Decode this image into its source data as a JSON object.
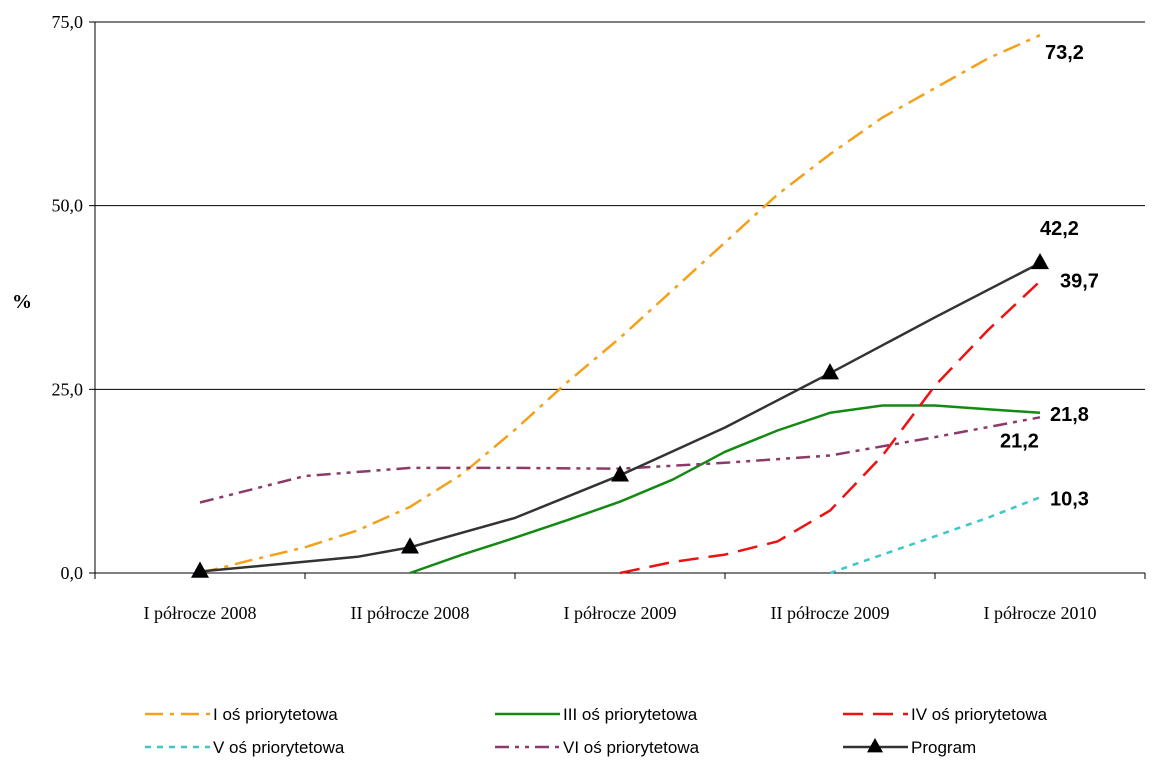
{
  "chart_data": {
    "type": "line",
    "ylabel": "%",
    "xlabel": "",
    "ylim": [
      0,
      75
    ],
    "yticks": [
      "0,0",
      "25,0",
      "50,0",
      "75,0"
    ],
    "ytick_values": [
      0,
      25,
      50,
      75
    ],
    "categories": [
      "I półrocze 2008",
      "II półrocze 2008",
      "I półrocze 2009",
      "II półrocze 2009",
      "I półrocze 2010"
    ],
    "grid": "horizontal",
    "legend_position": "bottom",
    "series": [
      {
        "name": "I oś priorytetowa",
        "color": "#F5A01A",
        "dash": "dash-dot",
        "x": [
          0,
          0.25,
          0.5,
          0.75,
          1,
          1.25,
          1.5,
          1.75,
          2,
          2.25,
          2.5,
          2.75,
          3,
          3.25,
          3.5,
          3.75,
          4
        ],
        "y": [
          0,
          1.8,
          3.5,
          5.8,
          9,
          13.5,
          19.5,
          26,
          32,
          38.5,
          45,
          51.5,
          57,
          62,
          66,
          70,
          73.2
        ],
        "end_label": "73,2"
      },
      {
        "name": "III oś priorytetowa",
        "color": "#138A13",
        "dash": "solid",
        "x": [
          1,
          1.25,
          1.5,
          1.75,
          2,
          2.25,
          2.5,
          2.75,
          3,
          3.25,
          3.5,
          3.75,
          4
        ],
        "y": [
          0,
          2.5,
          4.8,
          7.2,
          9.7,
          12.7,
          16.5,
          19.4,
          21.8,
          22.8,
          22.8,
          22.3,
          21.8
        ],
        "end_label": "21,8"
      },
      {
        "name": "IV oś priorytetowa",
        "color": "#EE1111",
        "dash": "long-dash",
        "x": [
          2,
          2.25,
          2.5,
          2.75,
          3,
          3.25,
          3.5,
          3.75,
          4
        ],
        "y": [
          0,
          1.5,
          2.5,
          4.3,
          8.5,
          16,
          25.5,
          33,
          39.7
        ],
        "end_label": "39,7"
      },
      {
        "name": "V oś priorytetowa",
        "color": "#3FC6C6",
        "dash": "dotted",
        "x": [
          3,
          3.25,
          3.5,
          3.75,
          4
        ],
        "y": [
          0,
          2.5,
          5,
          7.5,
          10.3
        ],
        "end_label": "10,3"
      },
      {
        "name": "VI oś priorytetowa",
        "color": "#8B3A6A",
        "dash": "dash-dot-dot",
        "x": [
          0,
          0.5,
          1,
          1.5,
          2,
          2.5,
          3,
          3.5,
          4
        ],
        "y": [
          9.6,
          13.2,
          14.3,
          14.3,
          14.2,
          15,
          16,
          18.5,
          21.2
        ],
        "end_label": "21,2"
      },
      {
        "name": "Program",
        "color": "#333333",
        "dash": "solid",
        "marker": "triangle",
        "x": [
          0,
          0.75,
          1,
          1.5,
          2,
          2.5,
          3,
          3.5,
          4
        ],
        "y": [
          0.2,
          2.2,
          3.5,
          7.5,
          13.3,
          19.8,
          27.2,
          34.8,
          42.2
        ],
        "marker_x": [
          0,
          1,
          2,
          3,
          4
        ],
        "marker_y": [
          0.2,
          3.5,
          13.3,
          27.2,
          42.2
        ],
        "end_label": "42,2"
      }
    ]
  }
}
